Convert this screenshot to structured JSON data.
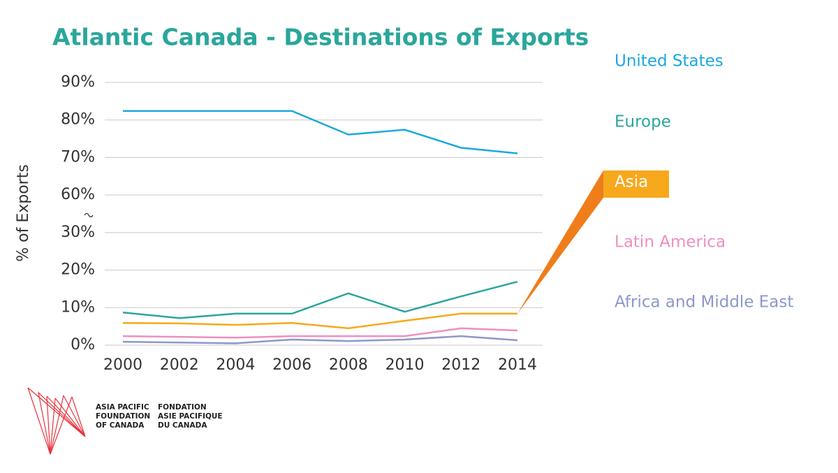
{
  "chart_data": {
    "type": "line",
    "title": "Atlantic Canada - Destinations of Exports",
    "y_label": "% of Exports",
    "x": [
      2000,
      2002,
      2004,
      2006,
      2008,
      2010,
      2012,
      2014
    ],
    "xlim": [
      2000,
      2014
    ],
    "xticks": [
      2000,
      2002,
      2004,
      2006,
      2008,
      2010,
      2012,
      2014
    ],
    "ylim": [
      0,
      90
    ],
    "yticks": [
      {
        "value": 0,
        "label": "0%"
      },
      {
        "value": 10,
        "label": "10%"
      },
      {
        "value": 20,
        "label": "20%"
      },
      {
        "value": 30,
        "label": "30%"
      },
      {
        "value": 60,
        "label": "60%"
      },
      {
        "value": 70,
        "label": "70%"
      },
      {
        "value": 80,
        "label": "80%"
      },
      {
        "value": 90,
        "label": "90%"
      }
    ],
    "axis_break": [
      30,
      60
    ],
    "grid": true,
    "legend": "right",
    "highlight": 2,
    "series": [
      {
        "name": "United States",
        "color": "#1ba8dd",
        "values": [
          82.4,
          82.4,
          82.4,
          82.4,
          76.1,
          77.4,
          72.6,
          71.1
        ]
      },
      {
        "name": "Europe",
        "color": "#2aa69b",
        "values": [
          8.7,
          7.2,
          8.4,
          8.4,
          13.8,
          8.9,
          13,
          16.9
        ]
      },
      {
        "name": "Asia",
        "color": "#f7a81d",
        "values": [
          5.9,
          5.8,
          5.4,
          5.9,
          4.5,
          6.5,
          8.4,
          8.4
        ]
      },
      {
        "name": "Latin America",
        "color": "#ee8fc0",
        "values": [
          2.4,
          2.2,
          2,
          2.4,
          2.4,
          2.4,
          4.5,
          3.9
        ]
      },
      {
        "name": "Africa and Middle East",
        "color": "#8c98ca",
        "values": [
          0.9,
          0.7,
          0.5,
          1.5,
          1.1,
          1.5,
          2.4,
          1.3
        ]
      }
    ]
  },
  "logo": {
    "english": [
      "ASIA PACIFIC",
      "FOUNDATION",
      "OF CANADA"
    ],
    "french": [
      "FONDATION",
      "ASIE PACIFIQUE",
      "DU CANADA"
    ]
  }
}
